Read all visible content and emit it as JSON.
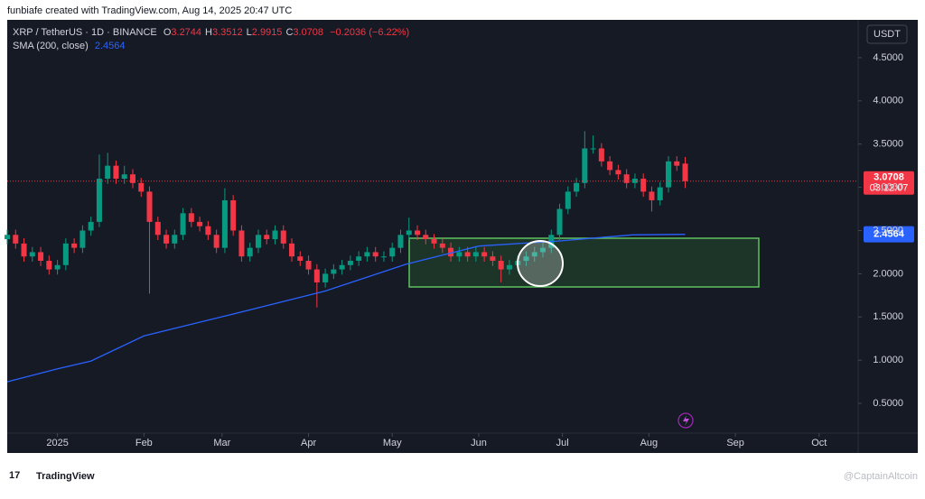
{
  "chart_data": {
    "type": "candlestick",
    "credit": "funbiafe created with TradingView.com, Aug 14, 2025 20:47 UTC",
    "title": "XRP / TetherUS · 1D · BINANCE",
    "ohlc": [
      {
        "label": "O",
        "value": 3.2744
      },
      {
        "label": "H",
        "value": 3.3512
      },
      {
        "label": "L",
        "value": 2.9915
      },
      {
        "label": "C",
        "value": 3.0708
      }
    ],
    "change": "−0.2036 (−6.22%)",
    "currency": "USDT",
    "countdown": "03:12:07",
    "brand": "TradingView",
    "watermark": "@CaptainAltcoin",
    "up_color": "#089981",
    "down_color": "#f23645",
    "grid": false,
    "x": [
      -18,
      -15,
      -12,
      -9,
      -6,
      -3,
      0,
      3,
      6,
      9,
      12,
      15,
      18,
      21,
      24,
      27,
      30,
      33,
      36,
      39,
      42,
      45,
      48,
      51,
      54,
      57,
      60,
      63,
      66,
      69,
      72,
      75,
      78,
      81,
      84,
      87,
      90,
      93,
      96,
      99,
      102,
      105,
      108,
      111,
      114,
      117,
      120,
      123,
      126,
      129,
      132,
      135,
      138,
      141,
      144,
      147,
      150,
      153,
      156,
      159,
      162,
      165,
      168,
      171,
      174,
      177,
      180,
      183,
      186,
      189,
      192,
      195,
      198,
      201,
      204,
      207,
      210,
      213,
      216,
      219,
      222,
      225
    ],
    "open": [
      2.4,
      2.45,
      2.35,
      2.2,
      2.25,
      2.15,
      2.05,
      2.1,
      2.35,
      2.3,
      2.5,
      2.6,
      3.1,
      3.25,
      3.1,
      3.15,
      3.05,
      2.95,
      2.6,
      2.45,
      2.35,
      2.45,
      2.7,
      2.6,
      2.55,
      2.45,
      2.3,
      2.85,
      2.5,
      2.2,
      2.3,
      2.45,
      2.4,
      2.5,
      2.35,
      2.2,
      2.15,
      2.05,
      1.9,
      2.0,
      2.05,
      2.1,
      2.15,
      2.2,
      2.25,
      2.2,
      2.2,
      2.3,
      2.45,
      2.5,
      2.45,
      2.4,
      2.35,
      2.3,
      2.2,
      2.25,
      2.2,
      2.25,
      2.2,
      2.15,
      2.05,
      2.1,
      2.15,
      2.2,
      2.25,
      2.3,
      2.45,
      2.75,
      2.95,
      3.05,
      3.45,
      3.45,
      3.3,
      3.2,
      3.15,
      3.05,
      3.1,
      2.95,
      2.85,
      3.0,
      3.3,
      3.2744
    ],
    "high": [
      2.51,
      2.51,
      2.41,
      2.31,
      2.31,
      2.21,
      2.16,
      2.41,
      2.41,
      2.56,
      2.66,
      3.38,
      3.4,
      3.31,
      3.25,
      3.21,
      3.11,
      3.01,
      2.66,
      2.51,
      2.51,
      2.76,
      2.76,
      2.66,
      2.61,
      2.51,
      2.99,
      2.91,
      2.56,
      2.36,
      2.51,
      2.51,
      2.56,
      2.56,
      2.41,
      2.26,
      2.21,
      2.11,
      2.06,
      2.11,
      2.16,
      2.21,
      2.26,
      2.31,
      2.31,
      2.26,
      2.36,
      2.51,
      2.65,
      2.56,
      2.51,
      2.46,
      2.41,
      2.36,
      2.31,
      2.31,
      2.31,
      2.31,
      2.26,
      2.21,
      2.16,
      2.21,
      2.26,
      2.31,
      2.36,
      2.51,
      2.81,
      3.01,
      3.11,
      3.65,
      3.6,
      3.51,
      3.36,
      3.26,
      3.21,
      3.16,
      3.16,
      3.01,
      3.06,
      3.36,
      3.36,
      3.3512
    ],
    "low": [
      2.34,
      2.29,
      2.14,
      2.14,
      2.09,
      1.99,
      1.99,
      2.04,
      2.24,
      2.24,
      2.44,
      2.54,
      3.04,
      3.04,
      3.04,
      2.99,
      2.89,
      1.77,
      2.39,
      2.29,
      2.29,
      2.39,
      2.54,
      2.49,
      2.39,
      2.24,
      2.24,
      2.44,
      2.14,
      2.14,
      2.24,
      2.34,
      2.34,
      2.29,
      2.14,
      2.09,
      1.99,
      1.61,
      1.84,
      1.94,
      1.99,
      2.04,
      2.09,
      2.14,
      2.14,
      2.14,
      2.14,
      2.24,
      2.39,
      2.39,
      2.34,
      2.29,
      2.24,
      2.14,
      2.14,
      2.14,
      2.14,
      2.14,
      2.09,
      1.9,
      1.99,
      2.04,
      2.09,
      2.14,
      2.19,
      2.24,
      2.39,
      2.69,
      2.89,
      2.99,
      3.39,
      3.24,
      3.14,
      3.09,
      2.99,
      2.99,
      2.89,
      2.72,
      2.79,
      2.94,
      3.19,
      2.9915
    ],
    "close": [
      2.45,
      2.35,
      2.2,
      2.25,
      2.15,
      2.05,
      2.1,
      2.35,
      2.3,
      2.5,
      2.6,
      3.1,
      3.25,
      3.1,
      3.15,
      3.05,
      2.95,
      2.6,
      2.45,
      2.35,
      2.45,
      2.7,
      2.6,
      2.55,
      2.45,
      2.3,
      2.85,
      2.5,
      2.2,
      2.3,
      2.45,
      2.4,
      2.5,
      2.35,
      2.2,
      2.15,
      2.05,
      1.9,
      2.0,
      2.05,
      2.1,
      2.15,
      2.2,
      2.25,
      2.2,
      2.2,
      2.3,
      2.45,
      2.5,
      2.45,
      2.4,
      2.35,
      2.3,
      2.2,
      2.25,
      2.2,
      2.25,
      2.2,
      2.15,
      2.05,
      2.1,
      2.15,
      2.2,
      2.25,
      2.3,
      2.45,
      2.75,
      2.95,
      3.05,
      3.45,
      3.45,
      3.3,
      3.2,
      3.15,
      3.05,
      3.1,
      2.95,
      2.85,
      3.0,
      3.3,
      3.25,
      3.0708
    ],
    "sma": {
      "name": "SMA (200, close)",
      "color": "#2962ff",
      "x": [
        -18,
        0,
        12,
        31,
        60,
        96,
        125,
        151,
        180,
        206,
        225
      ],
      "values": [
        0.75,
        0.9,
        0.99,
        1.28,
        1.51,
        1.8,
        2.11,
        2.32,
        2.38,
        2.45,
        2.4564
      ]
    },
    "xlim": [
      -18,
      287
    ],
    "xticks": [
      {
        "value": 0,
        "label": "2025"
      },
      {
        "value": 31,
        "label": "Feb"
      },
      {
        "value": 59,
        "label": "Mar"
      },
      {
        "value": 90,
        "label": "Apr"
      },
      {
        "value": 120,
        "label": "May"
      },
      {
        "value": 151,
        "label": "Jun"
      },
      {
        "value": 181,
        "label": "Jul"
      },
      {
        "value": 212,
        "label": "Aug"
      },
      {
        "value": 243,
        "label": "Sep"
      },
      {
        "value": 273,
        "label": "Oct"
      }
    ],
    "ylim": [
      0.156,
      4.875
    ],
    "yticks": [
      {
        "value": 0.5,
        "label": "0.5000"
      },
      {
        "value": 1,
        "label": "1.0000"
      },
      {
        "value": 1.5,
        "label": "1.5000"
      },
      {
        "value": 2,
        "label": "2.0000"
      },
      {
        "value": 2.5,
        "label": "2.5000"
      },
      {
        "value": 3,
        "label": "3.0000"
      },
      {
        "value": 3.5,
        "label": "3.5000"
      },
      {
        "value": 4,
        "label": "4.0000"
      },
      {
        "value": 4.5,
        "label": "4.5000"
      }
    ]
  }
}
